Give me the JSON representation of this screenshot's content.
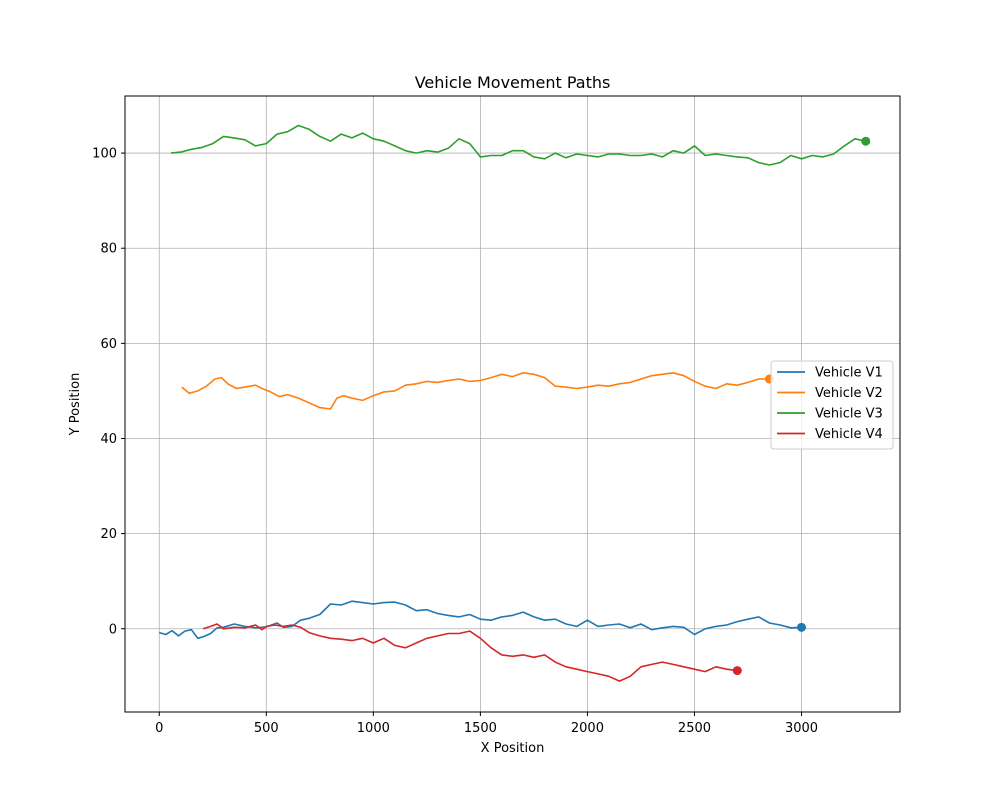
{
  "chart_data": {
    "type": "line",
    "title": "Vehicle Movement Paths",
    "xlabel": "X Position",
    "ylabel": "Y Position",
    "xlim": [
      -160,
      3460
    ],
    "ylim": [
      -17.5,
      112
    ],
    "xticks": [
      0,
      500,
      1000,
      1500,
      2000,
      2500,
      3000
    ],
    "yticks": [
      0,
      20,
      40,
      60,
      80,
      100
    ],
    "grid": true,
    "legend_position": "center-right",
    "series": [
      {
        "name": "Vehicle V1",
        "color": "#1f77b4",
        "x": [
          0,
          30,
          60,
          90,
          120,
          150,
          180,
          210,
          240,
          270,
          300,
          350,
          400,
          450,
          500,
          550,
          580,
          620,
          660,
          700,
          750,
          800,
          850,
          900,
          950,
          1000,
          1050,
          1100,
          1150,
          1200,
          1250,
          1300,
          1350,
          1400,
          1450,
          1500,
          1550,
          1600,
          1650,
          1700,
          1750,
          1800,
          1850,
          1900,
          1950,
          2000,
          2050,
          2100,
          2150,
          2200,
          2250,
          2300,
          2350,
          2400,
          2450,
          2500,
          2550,
          2600,
          2650,
          2700,
          2750,
          2800,
          2850,
          2900,
          2950,
          3000
        ],
        "y": [
          -0.8,
          -1.2,
          -0.4,
          -1.5,
          -0.5,
          -0.2,
          -2.0,
          -1.6,
          -1.0,
          0.2,
          0.3,
          1.0,
          0.5,
          0.2,
          0.4,
          1.2,
          0.3,
          0.5,
          1.8,
          2.2,
          3.0,
          5.2,
          5.0,
          5.8,
          5.5,
          5.2,
          5.5,
          5.6,
          5.0,
          3.8,
          4.0,
          3.2,
          2.8,
          2.5,
          3.0,
          2.0,
          1.8,
          2.5,
          2.8,
          3.5,
          2.5,
          1.8,
          2.0,
          1.0,
          0.5,
          1.8,
          0.5,
          0.8,
          1.0,
          0.2,
          1.0,
          -0.2,
          0.2,
          0.5,
          0.3,
          -1.2,
          0.0,
          0.5,
          0.8,
          1.5,
          2.0,
          2.5,
          1.2,
          0.8,
          0.2,
          0.3
        ]
      },
      {
        "name": "Vehicle V2",
        "color": "#ff7f0e",
        "x": [
          105,
          140,
          180,
          220,
          260,
          290,
          320,
          360,
          400,
          450,
          480,
          520,
          560,
          600,
          650,
          700,
          750,
          800,
          830,
          860,
          900,
          950,
          1000,
          1050,
          1100,
          1150,
          1200,
          1250,
          1300,
          1350,
          1400,
          1450,
          1500,
          1550,
          1600,
          1650,
          1700,
          1750,
          1800,
          1850,
          1900,
          1950,
          2000,
          2050,
          2100,
          2150,
          2200,
          2250,
          2300,
          2350,
          2400,
          2450,
          2500,
          2550,
          2600,
          2650,
          2700,
          2750,
          2800,
          2850
        ],
        "y": [
          50.8,
          49.5,
          50.0,
          51.0,
          52.5,
          52.8,
          51.5,
          50.5,
          50.8,
          51.2,
          50.5,
          49.8,
          48.8,
          49.2,
          48.5,
          47.5,
          46.5,
          46.2,
          48.5,
          49.0,
          48.5,
          48.0,
          49.0,
          49.8,
          50.0,
          51.2,
          51.5,
          52.0,
          51.8,
          52.2,
          52.5,
          52.0,
          52.2,
          52.8,
          53.5,
          53.0,
          53.8,
          53.5,
          52.8,
          51.0,
          50.8,
          50.5,
          50.8,
          51.2,
          51.0,
          51.5,
          51.8,
          52.5,
          53.2,
          53.5,
          53.8,
          53.2,
          52.0,
          51.0,
          50.5,
          51.5,
          51.2,
          51.8,
          52.5,
          52.5
        ]
      },
      {
        "name": "Vehicle V3",
        "color": "#2ca02c",
        "x": [
          55,
          100,
          150,
          200,
          250,
          300,
          350,
          400,
          450,
          500,
          550,
          600,
          650,
          700,
          750,
          800,
          850,
          900,
          950,
          1000,
          1050,
          1100,
          1150,
          1200,
          1250,
          1300,
          1350,
          1400,
          1450,
          1500,
          1550,
          1600,
          1650,
          1700,
          1750,
          1800,
          1850,
          1900,
          1950,
          2000,
          2050,
          2100,
          2150,
          2200,
          2250,
          2300,
          2350,
          2400,
          2450,
          2500,
          2550,
          2600,
          2650,
          2700,
          2750,
          2800,
          2850,
          2900,
          2950,
          3000,
          3050,
          3100,
          3150,
          3200,
          3250,
          3300
        ],
        "y": [
          100.0,
          100.2,
          100.8,
          101.2,
          102.0,
          103.5,
          103.2,
          102.8,
          101.5,
          102.0,
          104.0,
          104.5,
          105.8,
          105.0,
          103.5,
          102.5,
          104.0,
          103.2,
          104.2,
          103.0,
          102.5,
          101.5,
          100.5,
          100.0,
          100.5,
          100.2,
          101.0,
          103.0,
          102.0,
          99.2,
          99.5,
          99.5,
          100.5,
          100.5,
          99.2,
          98.8,
          100.0,
          99.0,
          99.8,
          99.5,
          99.2,
          99.8,
          99.8,
          99.5,
          99.5,
          99.8,
          99.2,
          100.5,
          100.0,
          101.5,
          99.5,
          99.8,
          99.5,
          99.2,
          99.0,
          98.0,
          97.5,
          98.0,
          99.5,
          98.8,
          99.5,
          99.2,
          99.8,
          101.5,
          103.0,
          102.5
        ]
      },
      {
        "name": "Vehicle V4",
        "color": "#d62728",
        "x": [
          205,
          240,
          270,
          300,
          350,
          400,
          450,
          480,
          500,
          540,
          580,
          620,
          660,
          700,
          750,
          800,
          850,
          900,
          950,
          1000,
          1050,
          1100,
          1150,
          1200,
          1250,
          1300,
          1350,
          1400,
          1450,
          1500,
          1550,
          1600,
          1650,
          1700,
          1750,
          1800,
          1850,
          1900,
          1950,
          2000,
          2050,
          2100,
          2150,
          2200,
          2250,
          2300,
          2350,
          2400,
          2450,
          2500,
          2550,
          2600,
          2650,
          2700
        ],
        "y": [
          0.0,
          0.5,
          1.0,
          0.0,
          0.3,
          0.2,
          0.8,
          -0.2,
          0.5,
          0.8,
          0.5,
          0.8,
          0.3,
          -0.8,
          -1.5,
          -2.0,
          -2.2,
          -2.5,
          -2.0,
          -3.0,
          -2.0,
          -3.5,
          -4.0,
          -3.0,
          -2.0,
          -1.5,
          -1.0,
          -1.0,
          -0.5,
          -2.0,
          -4.0,
          -5.5,
          -5.8,
          -5.5,
          -6.0,
          -5.5,
          -7.0,
          -8.0,
          -8.5,
          -9.0,
          -9.5,
          -10.0,
          -11.0,
          -10.0,
          -8.0,
          -7.5,
          -7.0,
          -7.5,
          -8.0,
          -8.5,
          -9.0,
          -8.0,
          -8.5,
          -8.8
        ]
      }
    ]
  }
}
